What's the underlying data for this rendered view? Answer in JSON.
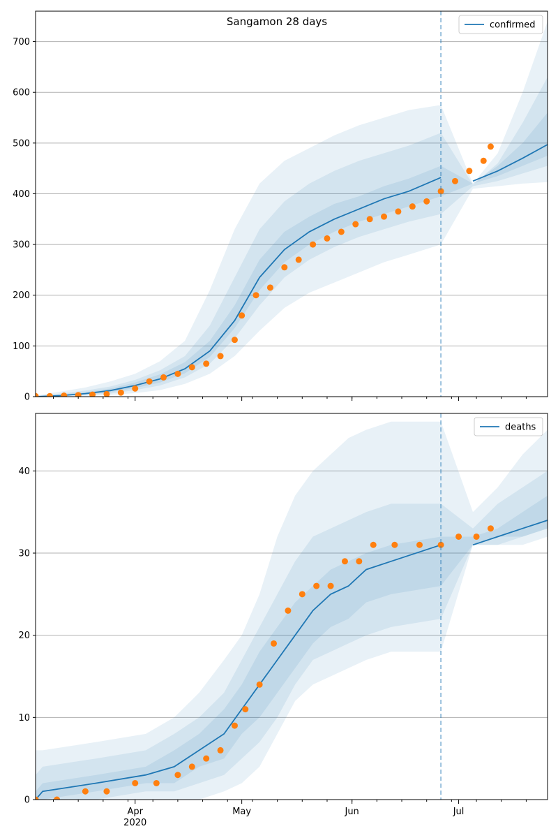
{
  "title": "Sangamon 28 days",
  "colors": {
    "line": "#1f77b4",
    "points": "#ff7f0e",
    "band": "#1f77b4",
    "grid": "#b0b0b0",
    "cutoff": "#1f77b4"
  },
  "chart_data": [
    {
      "type": "line",
      "legend": "confirmed",
      "legend_position": "top-right",
      "grid": "horizontal",
      "xlim": [
        "2020-03-04",
        "2020-07-26"
      ],
      "ylim": [
        0,
        760
      ],
      "yticks": [
        0,
        100,
        200,
        300,
        400,
        500,
        600,
        700
      ],
      "forecast_start": "2020-06-26",
      "model_median": {
        "x": [
          "2020-03-04",
          "2020-03-11",
          "2020-03-18",
          "2020-03-25",
          "2020-04-01",
          "2020-04-08",
          "2020-04-15",
          "2020-04-22",
          "2020-04-29",
          "2020-05-06",
          "2020-05-13",
          "2020-05-20",
          "2020-05-27",
          "2020-06-03",
          "2020-06-10",
          "2020-06-17",
          "2020-06-26",
          "2020-07-05",
          "2020-07-12",
          "2020-07-19",
          "2020-07-26"
        ],
        "y": [
          0,
          2,
          6,
          12,
          22,
          35,
          55,
          90,
          150,
          235,
          290,
          325,
          350,
          370,
          390,
          405,
          432,
          425,
          445,
          470,
          497
        ]
      },
      "bands": [
        {
          "level": "outer",
          "lower": [
            0,
            0,
            1,
            3,
            7,
            13,
            25,
            45,
            80,
            130,
            175,
            205,
            225,
            245,
            265,
            280,
            300,
            410,
            415,
            420,
            423
          ],
          "upper": [
            2,
            10,
            18,
            30,
            45,
            70,
            110,
            210,
            330,
            420,
            465,
            490,
            515,
            535,
            550,
            565,
            575,
            420,
            480,
            600,
            740
          ]
        },
        {
          "level": "middle",
          "lower": [
            0,
            1,
            3,
            6,
            13,
            22,
            38,
            65,
            115,
            180,
            235,
            270,
            295,
            315,
            330,
            345,
            360,
            415,
            425,
            440,
            455
          ],
          "upper": [
            1,
            6,
            12,
            20,
            33,
            52,
            80,
            140,
            235,
            330,
            385,
            420,
            445,
            465,
            480,
            495,
            520,
            418,
            460,
            540,
            630
          ]
        },
        {
          "level": "inner",
          "lower": [
            0,
            1,
            4,
            9,
            17,
            28,
            46,
            78,
            135,
            210,
            265,
            300,
            325,
            345,
            360,
            375,
            395,
            420,
            435,
            455,
            475
          ],
          "upper": [
            1,
            4,
            9,
            16,
            28,
            44,
            68,
            110,
            180,
            270,
            325,
            355,
            380,
            395,
            415,
            430,
            455,
            420,
            455,
            500,
            560
          ]
        }
      ],
      "observed": {
        "x": [
          "2020-03-04",
          "2020-03-08",
          "2020-03-12",
          "2020-03-16",
          "2020-03-20",
          "2020-03-24",
          "2020-03-28",
          "2020-04-01",
          "2020-04-05",
          "2020-04-09",
          "2020-04-13",
          "2020-04-17",
          "2020-04-21",
          "2020-04-25",
          "2020-04-29",
          "2020-05-01",
          "2020-05-05",
          "2020-05-09",
          "2020-05-13",
          "2020-05-17",
          "2020-05-21",
          "2020-05-25",
          "2020-05-29",
          "2020-06-02",
          "2020-06-06",
          "2020-06-10",
          "2020-06-14",
          "2020-06-18",
          "2020-06-22",
          "2020-06-26",
          "2020-06-30",
          "2020-07-04",
          "2020-07-08",
          "2020-07-10"
        ],
        "y": [
          1,
          1,
          2,
          3,
          4,
          5,
          8,
          16,
          30,
          38,
          45,
          58,
          65,
          80,
          112,
          160,
          200,
          215,
          255,
          270,
          300,
          312,
          325,
          340,
          350,
          355,
          365,
          375,
          385,
          405,
          425,
          445,
          465,
          493
        ]
      },
      "xticks_major": [
        {
          "date": "2020-04-01",
          "label": "Apr"
        },
        {
          "date": "2020-05-01",
          "label": "May"
        },
        {
          "date": "2020-06-01",
          "label": "Jun"
        },
        {
          "date": "2020-07-01",
          "label": "Jul"
        }
      ]
    },
    {
      "type": "line",
      "legend": "deaths",
      "legend_position": "top-right",
      "grid": "horizontal",
      "xlim": [
        "2020-03-04",
        "2020-07-26"
      ],
      "ylim": [
        0,
        47
      ],
      "yticks": [
        0,
        10,
        20,
        30,
        40
      ],
      "forecast_start": "2020-06-26",
      "model_median": {
        "x": [
          "2020-03-04",
          "2020-03-06",
          "2020-03-21",
          "2020-04-04",
          "2020-04-12",
          "2020-04-19",
          "2020-04-26",
          "2020-05-01",
          "2020-05-06",
          "2020-05-11",
          "2020-05-16",
          "2020-05-21",
          "2020-05-26",
          "2020-05-31",
          "2020-06-05",
          "2020-06-12",
          "2020-06-26",
          "2020-07-05",
          "2020-07-12",
          "2020-07-19",
          "2020-07-26"
        ],
        "y": [
          0,
          1,
          2,
          3,
          4,
          6,
          8,
          11,
          14,
          17,
          20,
          23,
          25,
          26,
          28,
          29,
          31,
          31,
          32,
          33,
          34
        ]
      },
      "bands": [
        {
          "level": "outer",
          "lower": [
            0,
            0,
            0,
            0,
            0,
            0,
            1,
            2,
            4,
            8,
            12,
            14,
            15,
            16,
            17,
            18,
            18,
            31,
            31,
            31,
            32
          ],
          "upper": [
            6,
            6,
            7,
            8,
            10,
            13,
            17,
            20,
            25,
            32,
            37,
            40,
            42,
            44,
            45,
            46,
            46,
            35,
            38,
            42,
            45
          ]
        },
        {
          "level": "middle",
          "lower": [
            0,
            0,
            0,
            1,
            1,
            2,
            3,
            5,
            7,
            10,
            14,
            17,
            18,
            19,
            20,
            21,
            22,
            31,
            31,
            32,
            33
          ],
          "upper": [
            3,
            4,
            5,
            6,
            8,
            10,
            13,
            17,
            21,
            25,
            29,
            32,
            33,
            34,
            35,
            36,
            36,
            33,
            36,
            38,
            40
          ]
        },
        {
          "level": "inner",
          "lower": [
            0,
            0,
            1,
            2,
            2,
            4,
            5,
            8,
            10,
            13,
            16,
            19,
            21,
            22,
            24,
            25,
            26,
            31,
            32,
            32,
            33
          ],
          "upper": [
            1,
            2,
            3,
            4,
            6,
            8,
            11,
            14,
            18,
            21,
            24,
            26,
            28,
            29,
            30,
            31,
            32,
            32,
            33,
            35,
            37
          ]
        }
      ],
      "observed": {
        "x": [
          "2020-03-04",
          "2020-03-10",
          "2020-03-18",
          "2020-03-24",
          "2020-04-01",
          "2020-04-07",
          "2020-04-13",
          "2020-04-17",
          "2020-04-21",
          "2020-04-25",
          "2020-04-29",
          "2020-05-02",
          "2020-05-06",
          "2020-05-10",
          "2020-05-14",
          "2020-05-18",
          "2020-05-22",
          "2020-05-26",
          "2020-05-30",
          "2020-06-03",
          "2020-06-07",
          "2020-06-13",
          "2020-06-20",
          "2020-06-26",
          "2020-07-01",
          "2020-07-06",
          "2020-07-10"
        ],
        "y": [
          0,
          0,
          1,
          1,
          2,
          2,
          3,
          4,
          5,
          6,
          9,
          11,
          14,
          19,
          23,
          25,
          26,
          26,
          29,
          29,
          31,
          31,
          31,
          31,
          32,
          32,
          33
        ]
      },
      "xticks_major": [
        {
          "date": "2020-04-01",
          "label": "Apr"
        },
        {
          "date": "2020-05-01",
          "label": "May"
        },
        {
          "date": "2020-06-01",
          "label": "Jun"
        },
        {
          "date": "2020-07-01",
          "label": "Jul"
        }
      ],
      "xtick_year_label": "2020"
    }
  ]
}
